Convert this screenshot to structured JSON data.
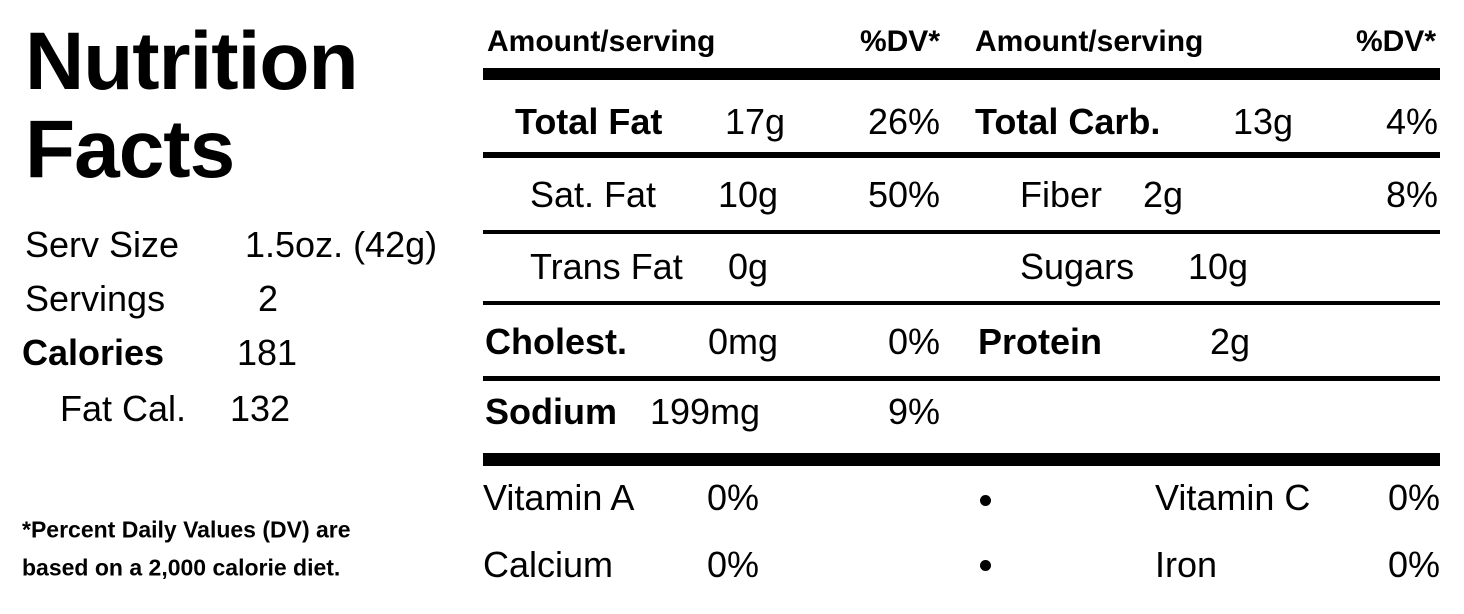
{
  "title": [
    "Nutrition",
    "Facts"
  ],
  "summary": [
    {
      "label": "Serv Size",
      "value": "1.5oz. (42g)"
    },
    {
      "label": "Servings",
      "value": "2"
    },
    {
      "label": "Calories",
      "value": "181"
    },
    {
      "label": "Fat Cal.",
      "value": "132"
    }
  ],
  "footnote": [
    "*Percent Daily Values (DV) are",
    "based on a 2,000 calorie diet."
  ],
  "header": [
    "Amount/serving",
    "%DV*",
    "Amount/serving",
    "%DV*"
  ],
  "rows": [
    {
      "left": {
        "name": "Total Fat",
        "amount": "17g",
        "dv": "26%"
      },
      "right": {
        "name": "Total Carb.",
        "amount": "13g",
        "dv": "4%"
      }
    },
    {
      "left": {
        "name": "Sat. Fat",
        "amount": "10g",
        "dv": "50%"
      },
      "right": {
        "name": "Fiber",
        "amount": "2g",
        "dv": "8%"
      }
    },
    {
      "left": {
        "name": "Trans Fat",
        "amount": "0g"
      },
      "right": {
        "name": "Sugars",
        "amount": "10g"
      }
    },
    {
      "left": {
        "name": "Cholest.",
        "amount": "0mg",
        "dv": "0%"
      },
      "right": {
        "name": "Protein",
        "amount": "2g"
      }
    },
    {
      "left": {
        "name": "Sodium",
        "amount": "199mg",
        "dv": "9%"
      }
    }
  ],
  "vitamins": [
    {
      "left": {
        "name": "Vitamin A",
        "dv": "0%"
      },
      "right": {
        "name": "Vitamin C",
        "dv": "0%"
      }
    },
    {
      "left": {
        "name": "Calcium",
        "dv": "0%"
      },
      "right": {
        "name": "Iron",
        "dv": "0%"
      }
    }
  ]
}
